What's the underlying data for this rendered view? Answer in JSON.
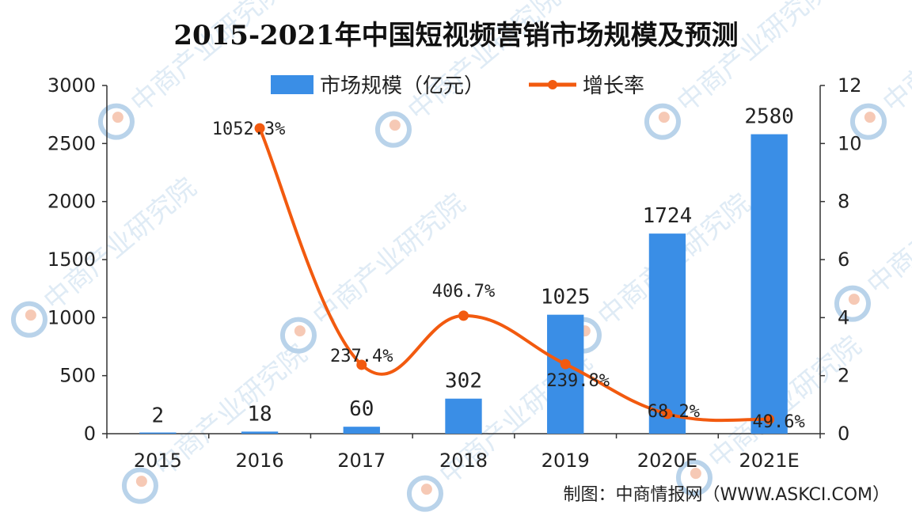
{
  "chart_data": {
    "type": "bar",
    "title": "2015-2021年中国短视频营销市场规模及预测",
    "categories": [
      "2015",
      "2016",
      "2017",
      "2018",
      "2019",
      "2020E",
      "2021E"
    ],
    "series": [
      {
        "name": "市场规模（亿元）",
        "type": "bar",
        "axis": "left",
        "values": [
          2,
          18,
          60,
          302,
          1025,
          1724,
          2580
        ],
        "labels": [
          "2",
          "18",
          "60",
          "302",
          "1025",
          "1724",
          "2580"
        ],
        "color": "#3a8ee6"
      },
      {
        "name": "增长率",
        "type": "line",
        "axis": "right",
        "values": [
          null,
          10.523,
          2.374,
          4.067,
          2.398,
          0.682,
          0.496
        ],
        "labels": [
          "",
          "1052.3%",
          "237.4%",
          "406.7%",
          "239.8%",
          "68.2%",
          "49.6%"
        ],
        "color": "#f25a0f"
      }
    ],
    "y_left": {
      "min": 0,
      "max": 3000,
      "ticks": [
        0,
        500,
        1000,
        1500,
        2000,
        2500,
        3000
      ]
    },
    "y_right": {
      "min": 0,
      "max": 12,
      "ticks": [
        0,
        2,
        4,
        6,
        8,
        10,
        12
      ]
    },
    "legend_position": "top-center",
    "grid": false
  },
  "source": "制图：中商情报网（WWW.ASKCI.COM）",
  "watermark": "中商产业研究院"
}
